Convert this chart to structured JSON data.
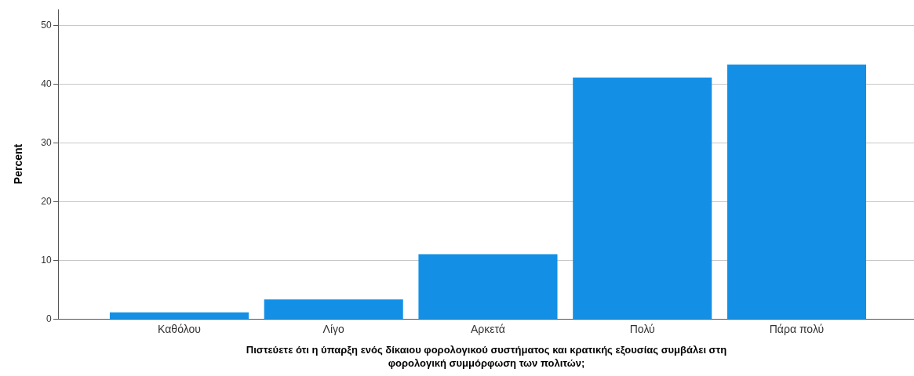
{
  "chart_data": {
    "type": "bar",
    "xlabel": "Πιστεύετε ότι η ύπαρξη ενός δίκαιου φορολογικού συστήματος και κρατικής εξουσίας συμβάλει στη φορολογική συμμόρφωση των πολιτών;",
    "ylabel": "Percent",
    "categories": [
      "Καθόλου",
      "Λίγο",
      "Αρκετά",
      "Πολύ",
      "Πάρα πολύ"
    ],
    "values": [
      1.1,
      3.3,
      11.0,
      41.1,
      43.3
    ],
    "color": "#1390e6",
    "ylim": [
      0,
      52.7
    ],
    "yticks": [
      0,
      10,
      20,
      30,
      40,
      50
    ],
    "grid": "y"
  }
}
